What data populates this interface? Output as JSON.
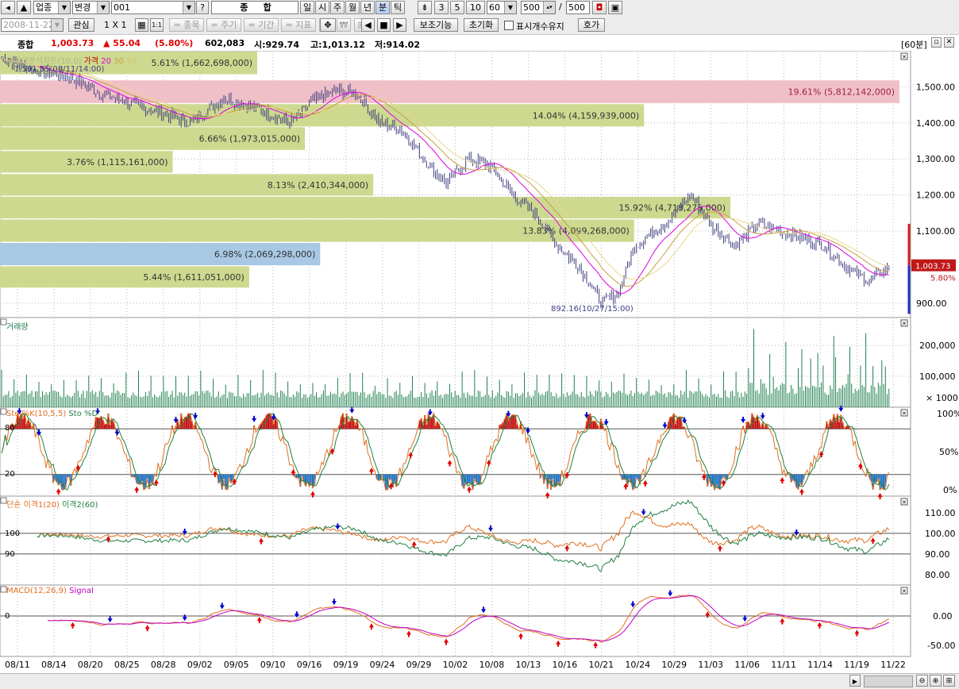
{
  "toolbar1": {
    "market": "업종",
    "change": "변경",
    "code": "001",
    "question": "?",
    "name": "종     합",
    "periods": [
      "일",
      "시",
      "주",
      "월",
      "년",
      "분",
      "틱"
    ],
    "selected_period": "분",
    "intervals": [
      "3",
      "5",
      "10"
    ],
    "interval_value": "60",
    "count": "500",
    "slash": "/",
    "total": "500"
  },
  "toolbar2": {
    "date": "2008-11-22",
    "interest": "관심",
    "layout": "1 X 1",
    "item_btn": "= 종목",
    "cycle_btn": "= 주기",
    "period_btn": "= 기간",
    "indicator_btn": "= 지표",
    "aux_btn": "보조기능",
    "reset_btn": "초기화",
    "keep_count_label": "표시개수유지",
    "quote_btn": "호가"
  },
  "info_bar": {
    "name": "종합",
    "price": "1,003.73",
    "change": "▲ 55.04",
    "pct": "(5.80%)",
    "volume": "602,083",
    "open": "시:929.74",
    "high": "고:1,013.12",
    "low": "저:914.02",
    "interval_badge": "[60분]"
  },
  "price_pane": {
    "legend_title": "매물대분석차트(10,0)",
    "legend_price": "가격",
    "legend_ma": [
      "20",
      "30",
      "40"
    ],
    "high_note": "1,591.55(08/11/14:00)",
    "low_note": "892.16(10/27/15:00)",
    "current_price": "1,003.73",
    "current_pct": "5.80%",
    "y_labels": [
      "1,500.00",
      "1,400.00",
      "1,300.00",
      "1,200.00",
      "1,100.00",
      "900.00"
    ],
    "volume_bands": [
      {
        "label": "5.61% (1,662,698,000)"
      },
      {
        "label": "19.61% (5,812,142,000)"
      },
      {
        "label": "14.04% (4,159,939,000)"
      },
      {
        "label": "6.66% (1,973,015,000)"
      },
      {
        "label": "3.76% (1,115,161,000)"
      },
      {
        "label": "8.13% (2,410,344,000)"
      },
      {
        "label": "15.92% (4,718,275,000)"
      },
      {
        "label": "13.83% (4,099,268,000)"
      },
      {
        "label": "6.98% (2,069,298,000)"
      },
      {
        "label": "5.44% (1,611,051,000)"
      }
    ]
  },
  "volume_pane": {
    "legend": "거래량",
    "y_labels": [
      "200,000",
      "100,000",
      "× 1000"
    ]
  },
  "sto_pane": {
    "legend_k": "Sto %K(10,5,5)",
    "legend_d": "Sto %D",
    "left_labels": [
      "80",
      "20"
    ],
    "y_labels": [
      "100%",
      "50%",
      "0%"
    ]
  },
  "disparity_pane": {
    "legend_1": "단순 이격1(20)",
    "legend_2": "이격2(60)",
    "left_labels": [
      "100",
      "90"
    ],
    "y_labels": [
      "110.00",
      "100.00",
      "90.00",
      "80.00"
    ]
  },
  "macd_pane": {
    "legend_macd": "MACD(12,26,9)",
    "legend_signal": "Signal",
    "left_labels": [
      "0"
    ],
    "y_labels": [
      "0.00",
      "-50.00"
    ]
  },
  "x_axis": [
    "08/11",
    "08/14",
    "08/20",
    "08/25",
    "08/28",
    "09/02",
    "09/05",
    "09/10",
    "09/16",
    "09/19",
    "09/24",
    "09/29",
    "10/02",
    "10/08",
    "10/13",
    "10/16",
    "10/21",
    "10/24",
    "10/29",
    "11/03",
    "11/06",
    "11/11",
    "11/14",
    "11/19",
    "11/22"
  ],
  "colors": {
    "band_green": "#cdd98f",
    "band_pink": "#f0c0c8",
    "band_blue": "#a8c8e4",
    "candle": "#404080",
    "ma20": "#e000e0",
    "ma30": "#c8a040",
    "ma40": "#e8d890",
    "volume": "#208050",
    "sto_k": "#e07020",
    "sto_d": "#208040",
    "macd": "#e07020",
    "signal": "#c000c0",
    "buy_arrow": "#e00000",
    "sell_arrow": "#0000d0"
  }
}
